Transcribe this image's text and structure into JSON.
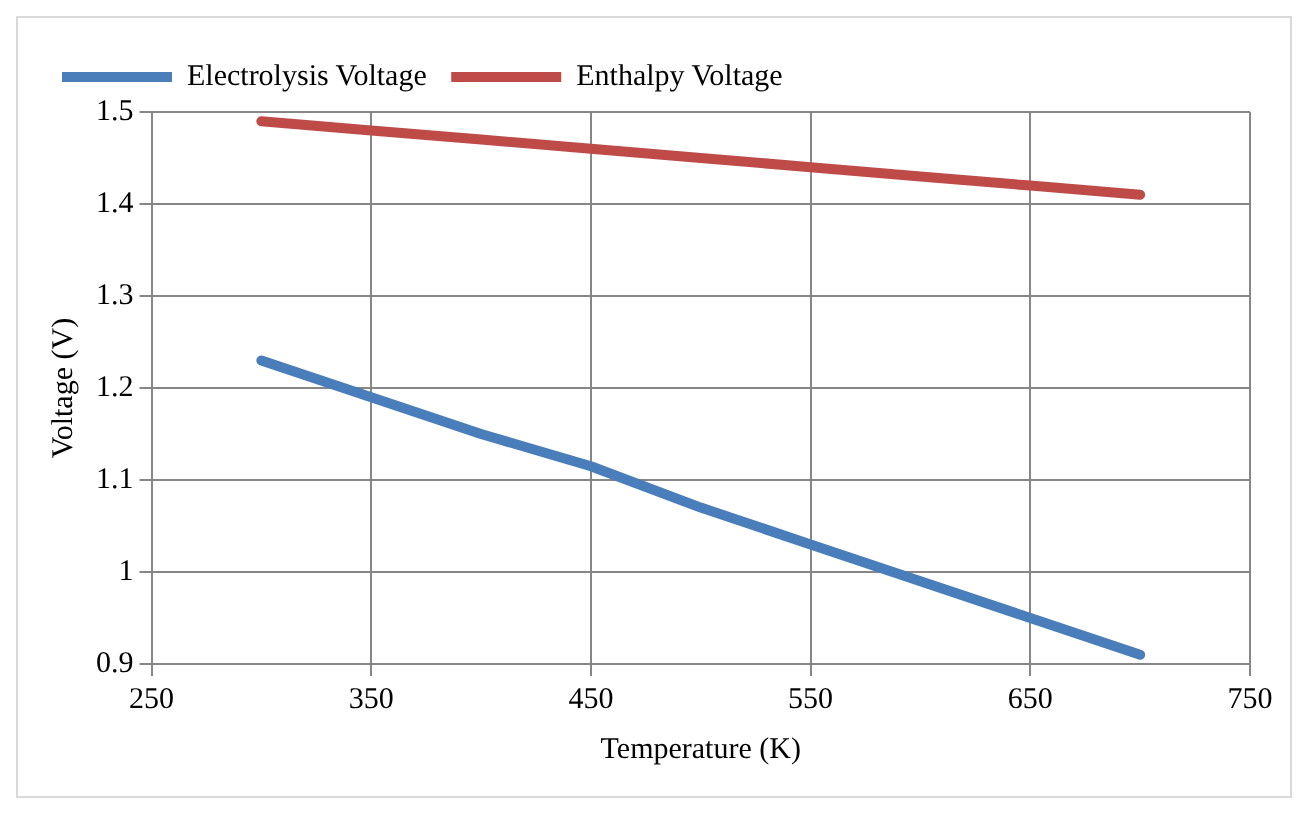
{
  "chart_data": {
    "type": "line",
    "xlabel": "Temperature (K)",
    "ylabel": "Voltage (V)",
    "x": [
      300,
      350,
      400,
      450,
      500,
      550,
      600,
      650,
      700
    ],
    "series": [
      {
        "name": "Electrolysis Voltage",
        "color": "#4a7ebb",
        "values": [
          1.23,
          1.19,
          1.15,
          1.115,
          1.07,
          1.03,
          0.99,
          0.95,
          0.91
        ]
      },
      {
        "name": "Enthalpy Voltage",
        "color": "#be4b48",
        "values": [
          1.49,
          1.48,
          1.47,
          1.46,
          1.45,
          1.44,
          1.43,
          1.42,
          1.41
        ]
      }
    ],
    "xlim": [
      250,
      750
    ],
    "xticks": [
      250,
      350,
      450,
      550,
      650,
      750
    ],
    "ylim": [
      0.9,
      1.5
    ],
    "yticks": [
      0.9,
      1,
      1.1,
      1.2,
      1.3,
      1.4,
      1.5
    ],
    "grid": true,
    "legend": "top left",
    "marker": "none",
    "line_style": "solid"
  }
}
